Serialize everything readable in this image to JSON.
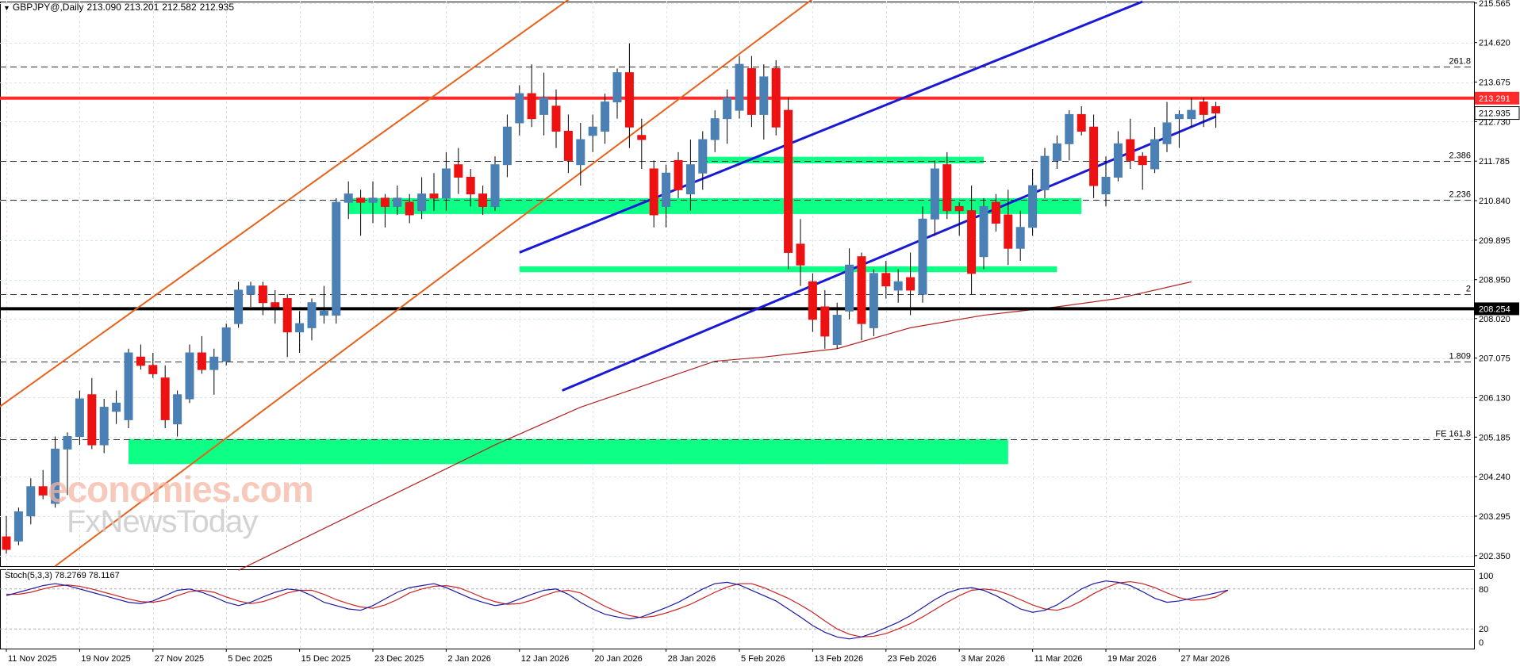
{
  "header": {
    "symbol": "GBPJPY@,Daily",
    "open": "213.090",
    "high": "213.201",
    "low": "212.582",
    "close": "212.935"
  },
  "stoch_header": "Stoch(5,3,3) 78.2769 78.1167",
  "watermark": {
    "line1": "economies.com",
    "line2": "FxNewsToday"
  },
  "colors": {
    "bull": "#4a80b4",
    "bear": "#ee1111",
    "resistance": "#ff2a2a",
    "support": "#000000",
    "zone": "#00ff7f",
    "channel_orange": "#e8611a",
    "channel_blue": "#1a1ad6",
    "ma": "#b22222",
    "stoch_main": "#1a1aa0",
    "stoch_signal": "#cc2222"
  },
  "chart_data": {
    "type": "candlestick",
    "symbol": "GBPJPY",
    "timeframe": "Daily",
    "ylim": [
      202.1,
      215.6
    ],
    "y_ticks": [
      "215.565",
      "214.620",
      "213.675",
      "212.730",
      "211.785",
      "210.840",
      "209.895",
      "208.950",
      "208.020",
      "207.075",
      "206.130",
      "205.185",
      "204.240",
      "203.295",
      "202.350"
    ],
    "x_labels": [
      {
        "label": "11 Nov 2025",
        "index": 0
      },
      {
        "label": "19 Nov 2025",
        "index": 6
      },
      {
        "label": "27 Nov 2025",
        "index": 12
      },
      {
        "label": "5 Dec 2025",
        "index": 18
      },
      {
        "label": "15 Dec 2025",
        "index": 24
      },
      {
        "label": "23 Dec 2025",
        "index": 30
      },
      {
        "label": "2 Jan 2026",
        "index": 36
      },
      {
        "label": "12 Jan 2026",
        "index": 42
      },
      {
        "label": "20 Jan 2026",
        "index": 48
      },
      {
        "label": "28 Jan 2026",
        "index": 54
      },
      {
        "label": "5 Feb 2026",
        "index": 60
      },
      {
        "label": "13 Feb 2026",
        "index": 66
      },
      {
        "label": "23 Feb 2026",
        "index": 72
      },
      {
        "label": "3 Mar 2026",
        "index": 78
      },
      {
        "label": "11 Mar 2026",
        "index": 84
      },
      {
        "label": "19 Mar 2026",
        "index": 90
      },
      {
        "label": "27 Mar 2026",
        "index": 96
      }
    ],
    "candles": [
      {
        "o": 202.8,
        "h": 203.3,
        "l": 202.4,
        "c": 202.5
      },
      {
        "o": 202.7,
        "h": 203.5,
        "l": 202.6,
        "c": 203.4
      },
      {
        "o": 203.3,
        "h": 204.2,
        "l": 203.1,
        "c": 204.0
      },
      {
        "o": 204.0,
        "h": 204.4,
        "l": 203.7,
        "c": 203.8
      },
      {
        "o": 203.6,
        "h": 205.2,
        "l": 203.5,
        "c": 204.9
      },
      {
        "o": 204.9,
        "h": 205.3,
        "l": 203.8,
        "c": 205.2
      },
      {
        "o": 205.2,
        "h": 206.3,
        "l": 205.0,
        "c": 206.1
      },
      {
        "o": 206.2,
        "h": 206.6,
        "l": 204.9,
        "c": 205.0
      },
      {
        "o": 205.0,
        "h": 206.1,
        "l": 204.8,
        "c": 205.9
      },
      {
        "o": 205.8,
        "h": 206.3,
        "l": 205.5,
        "c": 206.0
      },
      {
        "o": 205.6,
        "h": 207.3,
        "l": 205.4,
        "c": 207.2
      },
      {
        "o": 207.1,
        "h": 207.4,
        "l": 206.8,
        "c": 206.9
      },
      {
        "o": 206.9,
        "h": 207.2,
        "l": 206.6,
        "c": 206.7
      },
      {
        "o": 206.6,
        "h": 206.9,
        "l": 205.4,
        "c": 205.6
      },
      {
        "o": 205.5,
        "h": 206.3,
        "l": 205.2,
        "c": 206.2
      },
      {
        "o": 206.1,
        "h": 207.4,
        "l": 206.0,
        "c": 207.2
      },
      {
        "o": 207.2,
        "h": 207.6,
        "l": 206.7,
        "c": 206.8
      },
      {
        "o": 206.8,
        "h": 207.3,
        "l": 206.2,
        "c": 207.1
      },
      {
        "o": 207.0,
        "h": 207.9,
        "l": 206.9,
        "c": 207.8
      },
      {
        "o": 207.9,
        "h": 208.9,
        "l": 207.8,
        "c": 208.7
      },
      {
        "o": 208.6,
        "h": 208.9,
        "l": 208.3,
        "c": 208.8
      },
      {
        "o": 208.8,
        "h": 208.9,
        "l": 208.1,
        "c": 208.4
      },
      {
        "o": 208.4,
        "h": 208.7,
        "l": 207.9,
        "c": 208.3
      },
      {
        "o": 208.5,
        "h": 208.6,
        "l": 207.1,
        "c": 207.7
      },
      {
        "o": 207.7,
        "h": 208.2,
        "l": 207.2,
        "c": 207.9
      },
      {
        "o": 207.8,
        "h": 208.5,
        "l": 207.5,
        "c": 208.4
      },
      {
        "o": 208.1,
        "h": 208.8,
        "l": 207.9,
        "c": 208.2
      },
      {
        "o": 208.1,
        "h": 210.9,
        "l": 207.9,
        "c": 210.8
      },
      {
        "o": 210.8,
        "h": 211.3,
        "l": 210.4,
        "c": 211.0
      },
      {
        "o": 210.9,
        "h": 211.1,
        "l": 210.0,
        "c": 210.8
      },
      {
        "o": 210.8,
        "h": 211.3,
        "l": 210.3,
        "c": 210.9
      },
      {
        "o": 210.9,
        "h": 211.0,
        "l": 210.2,
        "c": 210.7
      },
      {
        "o": 210.7,
        "h": 211.2,
        "l": 210.5,
        "c": 210.9
      },
      {
        "o": 210.8,
        "h": 211.0,
        "l": 210.3,
        "c": 210.5
      },
      {
        "o": 210.6,
        "h": 211.4,
        "l": 210.4,
        "c": 211.0
      },
      {
        "o": 211.0,
        "h": 211.5,
        "l": 210.6,
        "c": 210.9
      },
      {
        "o": 210.9,
        "h": 212.0,
        "l": 210.6,
        "c": 211.6
      },
      {
        "o": 211.7,
        "h": 212.1,
        "l": 211.0,
        "c": 211.4
      },
      {
        "o": 211.4,
        "h": 211.6,
        "l": 210.7,
        "c": 211.0
      },
      {
        "o": 211.0,
        "h": 211.2,
        "l": 210.5,
        "c": 210.7
      },
      {
        "o": 210.7,
        "h": 211.9,
        "l": 210.6,
        "c": 211.7
      },
      {
        "o": 211.7,
        "h": 212.9,
        "l": 211.4,
        "c": 212.6
      },
      {
        "o": 212.7,
        "h": 213.6,
        "l": 212.4,
        "c": 213.4
      },
      {
        "o": 213.4,
        "h": 214.1,
        "l": 212.6,
        "c": 212.8
      },
      {
        "o": 212.9,
        "h": 213.9,
        "l": 212.4,
        "c": 213.3
      },
      {
        "o": 213.1,
        "h": 213.5,
        "l": 212.1,
        "c": 212.5
      },
      {
        "o": 212.5,
        "h": 212.9,
        "l": 211.5,
        "c": 211.8
      },
      {
        "o": 211.7,
        "h": 212.7,
        "l": 211.2,
        "c": 212.3
      },
      {
        "o": 212.4,
        "h": 212.9,
        "l": 212.0,
        "c": 212.6
      },
      {
        "o": 212.5,
        "h": 213.4,
        "l": 212.2,
        "c": 213.2
      },
      {
        "o": 213.2,
        "h": 214.0,
        "l": 212.8,
        "c": 213.9
      },
      {
        "o": 213.9,
        "h": 214.6,
        "l": 212.1,
        "c": 212.6
      },
      {
        "o": 212.4,
        "h": 212.8,
        "l": 211.6,
        "c": 212.3
      },
      {
        "o": 211.6,
        "h": 211.8,
        "l": 210.2,
        "c": 210.5
      },
      {
        "o": 210.7,
        "h": 211.7,
        "l": 210.2,
        "c": 211.5
      },
      {
        "o": 211.8,
        "h": 212.0,
        "l": 210.9,
        "c": 211.1
      },
      {
        "o": 211.0,
        "h": 212.3,
        "l": 210.6,
        "c": 211.7
      },
      {
        "o": 211.5,
        "h": 212.5,
        "l": 211.1,
        "c": 212.3
      },
      {
        "o": 212.3,
        "h": 213.0,
        "l": 212.0,
        "c": 212.8
      },
      {
        "o": 212.8,
        "h": 213.5,
        "l": 212.2,
        "c": 213.3
      },
      {
        "o": 213.0,
        "h": 214.3,
        "l": 212.8,
        "c": 214.1
      },
      {
        "o": 214.0,
        "h": 214.3,
        "l": 212.6,
        "c": 212.9
      },
      {
        "o": 212.9,
        "h": 214.1,
        "l": 212.3,
        "c": 213.8
      },
      {
        "o": 214.0,
        "h": 214.2,
        "l": 212.4,
        "c": 212.6
      },
      {
        "o": 213.0,
        "h": 213.3,
        "l": 209.2,
        "c": 209.6
      },
      {
        "o": 209.8,
        "h": 210.4,
        "l": 208.8,
        "c": 209.3
      },
      {
        "o": 208.9,
        "h": 209.1,
        "l": 207.7,
        "c": 208.0
      },
      {
        "o": 208.3,
        "h": 208.7,
        "l": 207.3,
        "c": 207.6
      },
      {
        "o": 207.4,
        "h": 208.4,
        "l": 207.3,
        "c": 208.1
      },
      {
        "o": 208.2,
        "h": 209.7,
        "l": 208.0,
        "c": 209.3
      },
      {
        "o": 209.5,
        "h": 209.6,
        "l": 207.5,
        "c": 207.9
      },
      {
        "o": 207.8,
        "h": 209.2,
        "l": 207.6,
        "c": 209.1
      },
      {
        "o": 209.1,
        "h": 209.4,
        "l": 208.5,
        "c": 208.8
      },
      {
        "o": 208.7,
        "h": 209.2,
        "l": 208.4,
        "c": 208.9
      },
      {
        "o": 209.0,
        "h": 209.6,
        "l": 208.1,
        "c": 208.7
      },
      {
        "o": 208.6,
        "h": 210.7,
        "l": 208.4,
        "c": 210.4
      },
      {
        "o": 210.4,
        "h": 211.8,
        "l": 210.0,
        "c": 211.6
      },
      {
        "o": 211.7,
        "h": 212.0,
        "l": 210.4,
        "c": 210.6
      },
      {
        "o": 210.7,
        "h": 210.8,
        "l": 210.0,
        "c": 210.6
      },
      {
        "o": 210.6,
        "h": 211.2,
        "l": 208.6,
        "c": 209.1
      },
      {
        "o": 209.5,
        "h": 210.9,
        "l": 209.2,
        "c": 210.7
      },
      {
        "o": 210.8,
        "h": 211.0,
        "l": 210.1,
        "c": 210.3
      },
      {
        "o": 210.5,
        "h": 211.1,
        "l": 209.3,
        "c": 209.7
      },
      {
        "o": 209.7,
        "h": 210.6,
        "l": 209.4,
        "c": 210.2
      },
      {
        "o": 210.2,
        "h": 211.6,
        "l": 210.0,
        "c": 211.2
      },
      {
        "o": 211.1,
        "h": 212.1,
        "l": 210.9,
        "c": 211.9
      },
      {
        "o": 211.8,
        "h": 212.4,
        "l": 211.6,
        "c": 212.2
      },
      {
        "o": 212.2,
        "h": 213.0,
        "l": 211.8,
        "c": 212.9
      },
      {
        "o": 212.9,
        "h": 213.1,
        "l": 212.4,
        "c": 212.5
      },
      {
        "o": 212.6,
        "h": 212.9,
        "l": 210.9,
        "c": 211.2
      },
      {
        "o": 211.0,
        "h": 211.9,
        "l": 210.7,
        "c": 211.4
      },
      {
        "o": 211.4,
        "h": 212.5,
        "l": 211.3,
        "c": 212.2
      },
      {
        "o": 212.3,
        "h": 212.8,
        "l": 211.6,
        "c": 211.8
      },
      {
        "o": 211.9,
        "h": 212.0,
        "l": 211.1,
        "c": 211.7
      },
      {
        "o": 211.6,
        "h": 212.6,
        "l": 211.5,
        "c": 212.3
      },
      {
        "o": 212.2,
        "h": 213.2,
        "l": 212.0,
        "c": 212.7
      },
      {
        "o": 212.8,
        "h": 213.0,
        "l": 212.1,
        "c": 212.9
      },
      {
        "o": 212.8,
        "h": 213.3,
        "l": 212.6,
        "c": 213.0
      },
      {
        "o": 213.2,
        "h": 213.3,
        "l": 212.6,
        "c": 212.9
      },
      {
        "o": 213.09,
        "h": 213.201,
        "l": 212.582,
        "c": 212.935
      }
    ],
    "horizontal_levels": [
      {
        "value": 213.291,
        "label": "213.291",
        "style": "resistance"
      },
      {
        "value": 208.254,
        "label": "208.254",
        "style": "support"
      }
    ],
    "current_price": {
      "value": 212.935,
      "label": "212.935"
    },
    "fib_levels": [
      {
        "value": 214.05,
        "label": "261.8"
      },
      {
        "value": 211.79,
        "label": "2.386"
      },
      {
        "value": 210.86,
        "label": "2.236"
      },
      {
        "value": 208.6,
        "label": "2"
      },
      {
        "value": 206.99,
        "label": "1.809"
      },
      {
        "value": 205.14,
        "label": "FE 161.8"
      }
    ],
    "zones": [
      {
        "from_index": 28,
        "to_index": 88,
        "low": 210.52,
        "high": 210.9
      },
      {
        "from_index": 57,
        "to_index": 80,
        "low": 211.73,
        "high": 211.89
      },
      {
        "from_index": 42,
        "to_index": 86,
        "low": 209.13,
        "high": 209.27
      },
      {
        "from_index": 10,
        "to_index": 82,
        "low": 204.54,
        "high": 205.14
      }
    ],
    "trend_lines": [
      {
        "kind": "channel_orange",
        "x1": -3,
        "y1": 205.4,
        "x2": 52,
        "y2": 216.9
      },
      {
        "kind": "channel_orange",
        "x1": 4,
        "y1": 202.1,
        "x2": 68,
        "y2": 216.1
      },
      {
        "kind": "channel_blue",
        "x1": 42,
        "y1": 209.6,
        "x2": 93,
        "y2": 215.6
      },
      {
        "kind": "channel_blue",
        "x1": 45.5,
        "y1": 206.3,
        "x2": 99,
        "y2": 212.85
      }
    ],
    "ma_line": [
      {
        "i": 19,
        "v": 202.0
      },
      {
        "i": 26,
        "v": 203.0
      },
      {
        "i": 33,
        "v": 204.0
      },
      {
        "i": 40,
        "v": 205.0
      },
      {
        "i": 47,
        "v": 205.9
      },
      {
        "i": 53,
        "v": 206.5
      },
      {
        "i": 58,
        "v": 207.0
      },
      {
        "i": 62,
        "v": 207.1
      },
      {
        "i": 68,
        "v": 207.3
      },
      {
        "i": 74,
        "v": 207.8
      },
      {
        "i": 80,
        "v": 208.1
      },
      {
        "i": 86,
        "v": 208.3
      },
      {
        "i": 91,
        "v": 208.5
      },
      {
        "i": 97,
        "v": 208.9
      }
    ],
    "stochastic": {
      "name": "Stoch(5,3,3)",
      "k_last": 78.2769,
      "d_last": 78.1167,
      "ylim": [
        0,
        100
      ],
      "levels": [
        80,
        20
      ],
      "tick_labels": [
        "100",
        "80",
        "20",
        "0"
      ],
      "k": [
        70,
        75,
        80,
        85,
        88,
        85,
        80,
        75,
        70,
        65,
        60,
        58,
        62,
        70,
        78,
        80,
        75,
        68,
        60,
        55,
        60,
        68,
        75,
        80,
        78,
        70,
        60,
        55,
        50,
        48,
        55,
        65,
        75,
        82,
        85,
        88,
        82,
        74,
        66,
        60,
        55,
        58,
        65,
        72,
        78,
        80,
        72,
        60,
        50,
        42,
        38,
        35,
        38,
        45,
        52,
        60,
        70,
        80,
        88,
        90,
        86,
        78,
        70,
        62,
        50,
        38,
        25,
        15,
        8,
        5,
        8,
        14,
        22,
        30,
        40,
        52,
        64,
        74,
        80,
        82,
        78,
        70,
        60,
        50,
        45,
        48,
        56,
        68,
        80,
        88,
        92,
        90,
        85,
        76,
        66,
        60,
        62,
        66,
        70,
        74,
        78.2769
      ],
      "d": [
        72,
        72,
        75,
        80,
        84,
        86,
        84,
        80,
        75,
        70,
        65,
        61,
        60,
        63,
        70,
        76,
        78,
        75,
        68,
        62,
        58,
        61,
        67,
        74,
        78,
        78,
        72,
        64,
        58,
        53,
        51,
        56,
        64,
        74,
        80,
        84,
        85,
        82,
        75,
        67,
        61,
        57,
        58,
        63,
        70,
        76,
        78,
        74,
        64,
        54,
        46,
        40,
        37,
        39,
        44,
        50,
        57,
        66,
        75,
        83,
        88,
        88,
        82,
        74,
        66,
        56,
        45,
        32,
        20,
        12,
        8,
        9,
        13,
        20,
        28,
        38,
        49,
        60,
        70,
        78,
        80,
        78,
        72,
        64,
        56,
        50,
        48,
        53,
        62,
        73,
        82,
        89,
        91,
        88,
        82,
        74,
        67,
        63,
        64,
        68,
        78.1167
      ]
    }
  }
}
